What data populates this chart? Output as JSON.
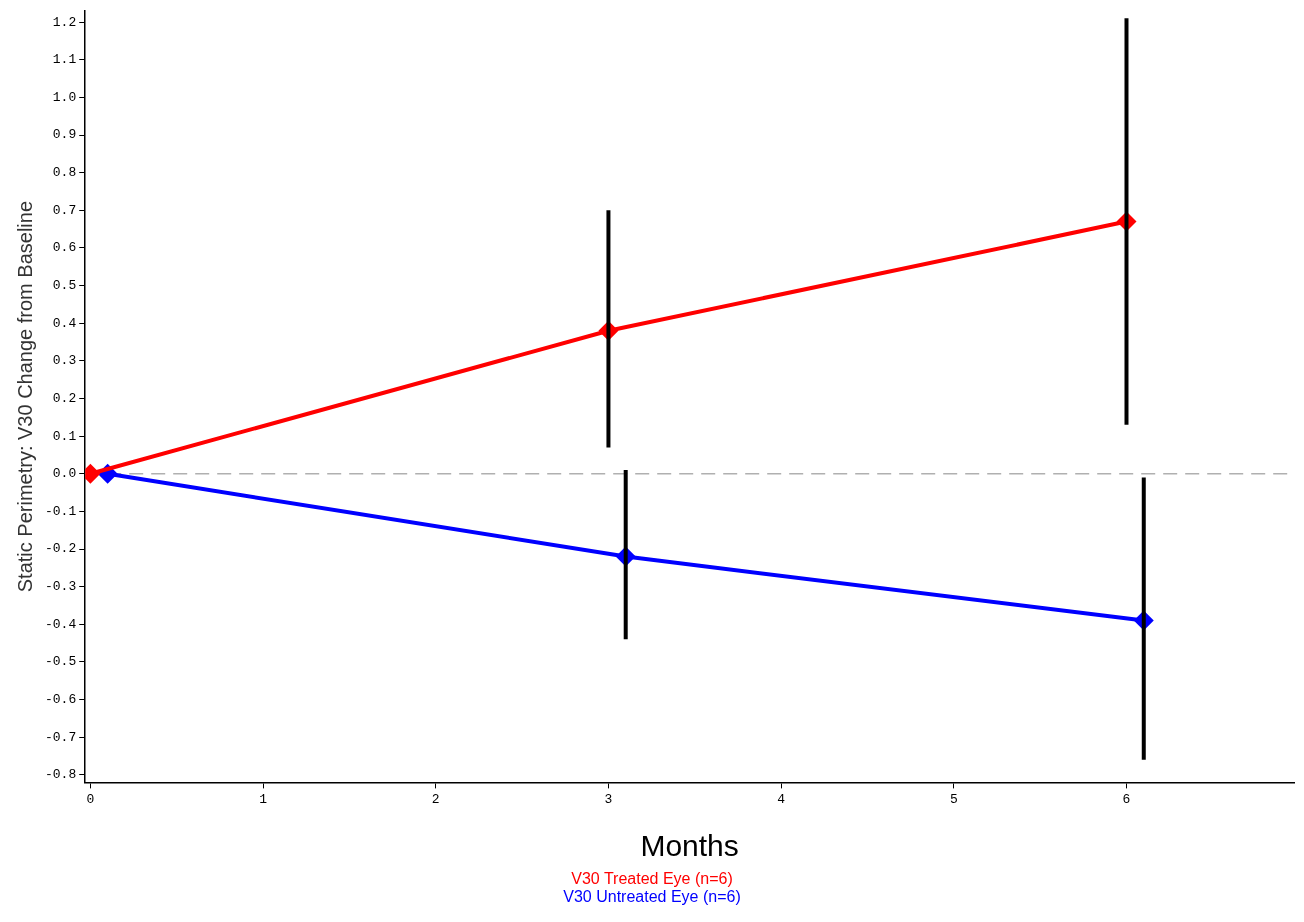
{
  "chart_data": {
    "type": "line",
    "xlabel": "Months",
    "ylabel": "Static Perimetry: V30 Change from Baseline",
    "xlim": [
      -0.03,
      6.97
    ],
    "xticks": [
      0,
      1,
      2,
      3,
      4,
      5,
      6
    ],
    "ylim": [
      -0.82,
      1.23
    ],
    "yticks": [
      {
        "value": -0.8,
        "label": "-0.8"
      },
      {
        "value": -0.7,
        "label": "-0.7"
      },
      {
        "value": -0.6,
        "label": "-0.6"
      },
      {
        "value": -0.5,
        "label": "-0.5"
      },
      {
        "value": -0.4,
        "label": "-0.4"
      },
      {
        "value": -0.3,
        "label": "-0.3"
      },
      {
        "value": -0.2,
        "label": "-0.2"
      },
      {
        "value": -0.1,
        "label": "-0.1"
      },
      {
        "value": 0,
        "label": "0.0"
      },
      {
        "value": 0.1,
        "label": "0.1"
      },
      {
        "value": 0.2,
        "label": "0.2"
      },
      {
        "value": 0.3,
        "label": "0.3"
      },
      {
        "value": 0.4,
        "label": "0.4"
      },
      {
        "value": 0.5,
        "label": "0.5"
      },
      {
        "value": 0.6,
        "label": "0.6"
      },
      {
        "value": 0.7,
        "label": "0.7"
      },
      {
        "value": 0.8,
        "label": "0.8"
      },
      {
        "value": 0.9,
        "label": "0.9"
      },
      {
        "value": 1,
        "label": "1.0"
      },
      {
        "value": 1.1,
        "label": "1.1"
      },
      {
        "value": 1.2,
        "label": "1.2"
      }
    ],
    "grid": false,
    "legend": "bottom",
    "marker": "diamond",
    "line_style": "solid",
    "ref_lines": [
      {
        "axis": "y",
        "value": 0,
        "color": "#b0b0b0",
        "line_style": "dashed"
      }
    ],
    "series": [
      {
        "name": "V30 Treated Eye (n=6)",
        "color": "#ff0000",
        "x": [
          0,
          3,
          6
        ],
        "values": [
          0,
          0.38,
          0.67
        ],
        "errors": [
          null,
          [
            0.07,
            0.7
          ],
          [
            0.13,
            1.21
          ]
        ]
      },
      {
        "name": "V30 Untreated Eye (n=6)",
        "color": "#0000ff",
        "x": [
          0.1,
          3.1,
          6.1
        ],
        "values": [
          0,
          -0.22,
          -0.39
        ],
        "errors": [
          null,
          [
            -0.44,
            0.01
          ],
          [
            -0.76,
            -0.01
          ]
        ]
      }
    ]
  }
}
